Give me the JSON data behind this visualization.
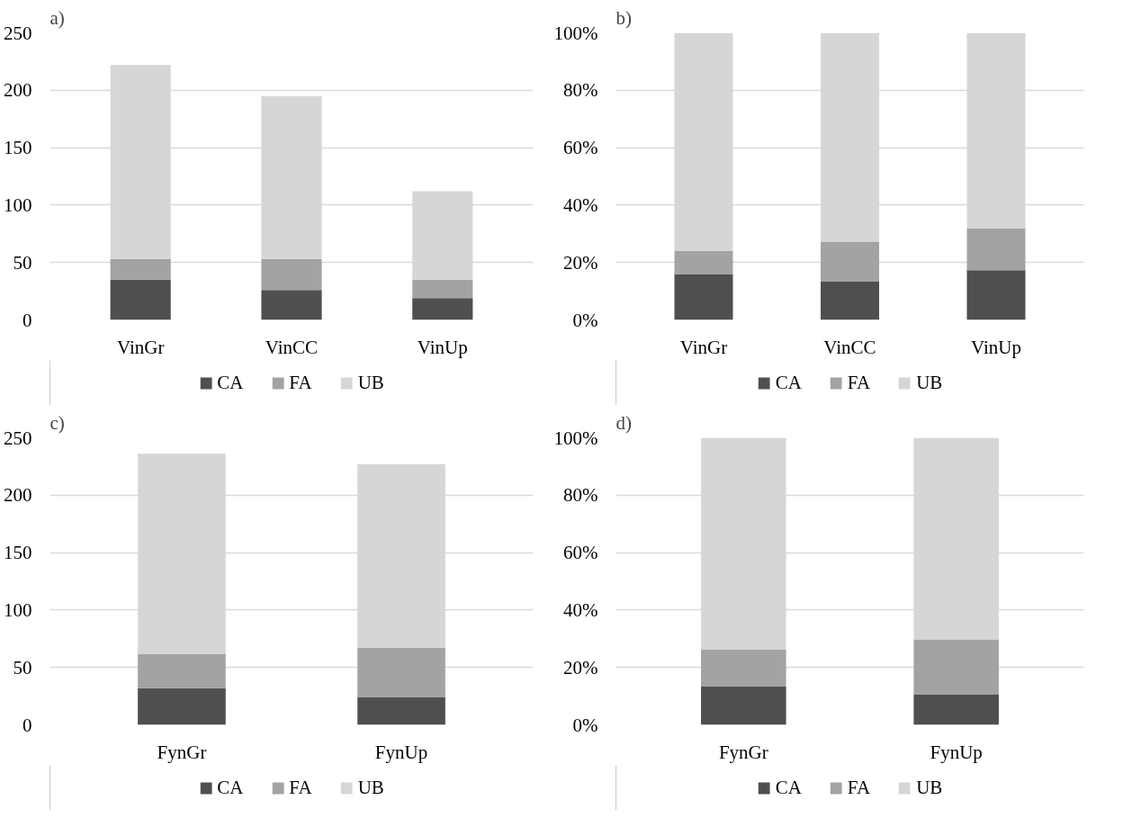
{
  "chart_data": [
    {
      "type": "bar",
      "stacked": true,
      "annotations": [
        "a)"
      ],
      "categories": [
        "VinGr",
        "VinCC",
        "VinUp"
      ],
      "ylim": [
        0,
        250
      ],
      "yticks": [
        0,
        50,
        100,
        150,
        200,
        250
      ],
      "grid": "y",
      "legend": "bottom",
      "series": [
        {
          "name": "CA",
          "color": "#4f4f4f",
          "values": [
            35,
            26,
            19
          ]
        },
        {
          "name": "FA",
          "color": "#a3a3a3",
          "values": [
            18,
            27,
            16
          ]
        },
        {
          "name": "UB",
          "color": "#d6d6d6",
          "values": [
            169,
            142,
            77
          ]
        }
      ]
    },
    {
      "type": "bar",
      "stacked": true,
      "annotations": [
        "b)"
      ],
      "categories": [
        "VinGr",
        "VinCC",
        "VinUp"
      ],
      "ylim": [
        0,
        100
      ],
      "yticks": [
        {
          "value": 0,
          "label": "0%"
        },
        {
          "value": 20,
          "label": "20%"
        },
        {
          "value": 40,
          "label": "40%"
        },
        {
          "value": 60,
          "label": "60%"
        },
        {
          "value": 80,
          "label": "80%"
        },
        {
          "value": 100,
          "label": "100%"
        }
      ],
      "grid": "y",
      "legend": "bottom",
      "series": [
        {
          "name": "CA",
          "color": "#4f4f4f",
          "values": [
            16,
            13.5,
            17.3
          ]
        },
        {
          "name": "FA",
          "color": "#a3a3a3",
          "values": [
            8,
            13.8,
            14.5
          ]
        },
        {
          "name": "UB",
          "color": "#d6d6d6",
          "values": [
            76,
            72.7,
            68.2
          ]
        }
      ]
    },
    {
      "type": "bar",
      "stacked": true,
      "annotations": [
        "c)"
      ],
      "categories": [
        "FynGr",
        "FynUp"
      ],
      "ylim": [
        0,
        250
      ],
      "yticks": [
        0,
        50,
        100,
        150,
        200,
        250
      ],
      "grid": "y",
      "legend": "bottom",
      "series": [
        {
          "name": "CA",
          "color": "#4f4f4f",
          "values": [
            32,
            24
          ]
        },
        {
          "name": "FA",
          "color": "#a3a3a3",
          "values": [
            30,
            43
          ]
        },
        {
          "name": "UB",
          "color": "#d6d6d6",
          "values": [
            174,
            160
          ]
        }
      ]
    },
    {
      "type": "bar",
      "stacked": true,
      "annotations": [
        "d)"
      ],
      "categories": [
        "FynGr",
        "FynUp"
      ],
      "ylim": [
        0,
        100
      ],
      "yticks": [
        {
          "value": 0,
          "label": "0%"
        },
        {
          "value": 20,
          "label": "20%"
        },
        {
          "value": 40,
          "label": "40%"
        },
        {
          "value": 60,
          "label": "60%"
        },
        {
          "value": 80,
          "label": "80%"
        },
        {
          "value": 100,
          "label": "100%"
        }
      ],
      "grid": "y",
      "legend": "bottom",
      "series": [
        {
          "name": "CA",
          "color": "#4f4f4f",
          "values": [
            13.5,
            10.5
          ]
        },
        {
          "name": "FA",
          "color": "#a3a3a3",
          "values": [
            12.7,
            19.1
          ]
        },
        {
          "name": "UB",
          "color": "#d6d6d6",
          "values": [
            73.8,
            70.4
          ]
        }
      ]
    }
  ]
}
